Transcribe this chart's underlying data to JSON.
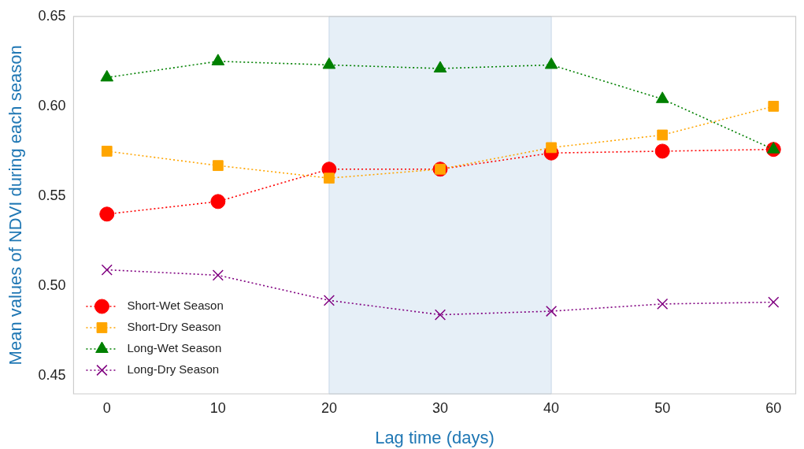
{
  "chart_data": {
    "type": "line",
    "xlabel": "Lag time (days)",
    "ylabel": "Mean values of NDVI during each season",
    "x": [
      0,
      10,
      20,
      30,
      40,
      50,
      60
    ],
    "series": [
      {
        "name": "Short-Wet Season",
        "color": "#ff0000",
        "marker": "circle",
        "values": [
          0.54,
          0.547,
          0.565,
          0.565,
          0.574,
          0.575,
          0.576
        ]
      },
      {
        "name": "Short-Dry Season",
        "color": "#ffa500",
        "marker": "square",
        "values": [
          0.575,
          0.567,
          0.56,
          0.565,
          0.577,
          0.584,
          0.6
        ]
      },
      {
        "name": "Long-Wet Season",
        "color": "#008000",
        "marker": "triangle",
        "values": [
          0.616,
          0.625,
          0.623,
          0.621,
          0.623,
          0.604,
          0.576
        ]
      },
      {
        "name": "Long-Dry Season",
        "color": "#800080",
        "marker": "cross",
        "values": [
          0.509,
          0.506,
          0.492,
          0.484,
          0.486,
          0.49,
          0.491
        ]
      }
    ],
    "xlim": [
      -3,
      62
    ],
    "xticks": [
      0,
      10,
      20,
      30,
      40,
      50,
      60
    ],
    "ylim": [
      0.44,
      0.65
    ],
    "yticks": [
      {
        "value": 0.45,
        "label": "0.45"
      },
      {
        "value": 0.5,
        "label": "0.50"
      },
      {
        "value": 0.55,
        "label": "0.55"
      },
      {
        "value": 0.6,
        "label": "0.60"
      },
      {
        "value": 0.65,
        "label": "0.65"
      }
    ],
    "bands": [
      {
        "axis": "x",
        "from": 20,
        "to": 40,
        "color": "#e6eff7"
      }
    ],
    "grid": false,
    "legend": "bottom left",
    "line_style": "dotted"
  }
}
